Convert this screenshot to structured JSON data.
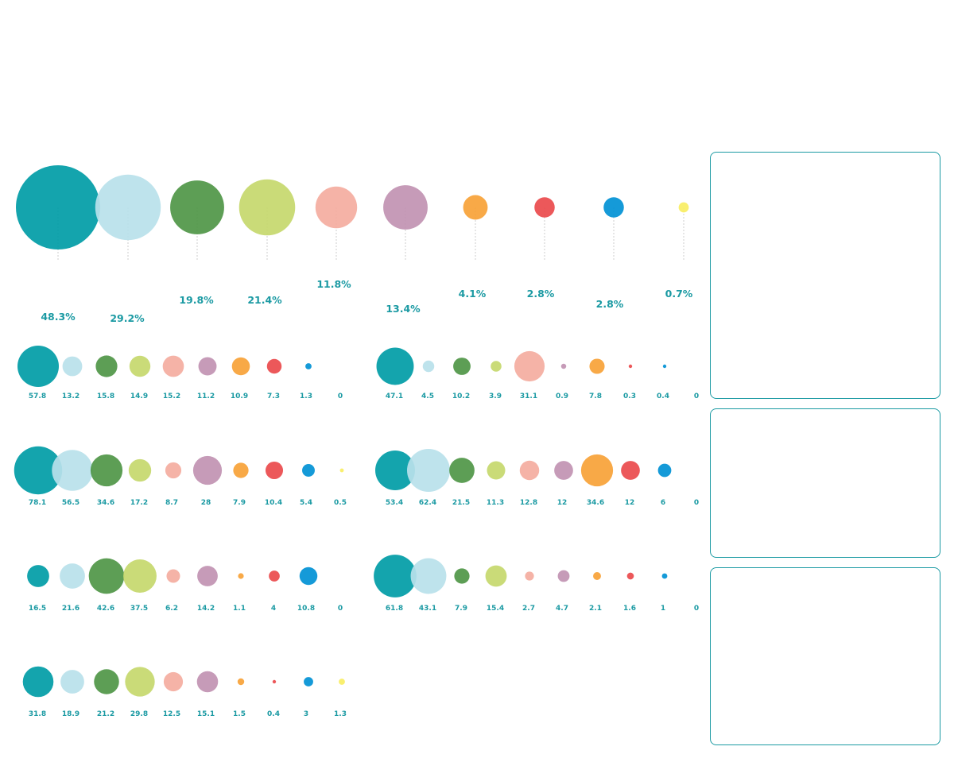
{
  "colors": [
    "#009ca6",
    "#b9e1ea",
    "#4f9647",
    "#c5d86d",
    "#f4ada0",
    "#c193b2",
    "#f7a237",
    "#ea4a4c",
    "#0191d5",
    "#f8ee63"
  ],
  "label_color": "#1b9aa3",
  "chart_data": {
    "type": "bubble",
    "summary": {
      "values": [
        48.3,
        29.2,
        19.8,
        21.4,
        11.8,
        13.4,
        4.1,
        2.8,
        2.8,
        0.7
      ],
      "labels": [
        "48.3%",
        "29.2%",
        "19.8%",
        "21.4%",
        "11.8%",
        "13.4%",
        "4.1%",
        "2.8%",
        "2.8%",
        "0.7%"
      ]
    },
    "rows": [
      {
        "values": [
          57.8,
          13.2,
          15.8,
          14.9,
          15.2,
          11.2,
          10.9,
          7.3,
          1.3,
          0
        ]
      },
      {
        "values": [
          47.1,
          4.5,
          10.2,
          3.9,
          31.1,
          0.9,
          7.8,
          0.3,
          0.4,
          0
        ]
      },
      {
        "values": [
          78.1,
          56.5,
          34.6,
          17.2,
          8.7,
          28,
          7.9,
          10.4,
          5.4,
          0.5
        ]
      },
      {
        "values": [
          53.4,
          62.4,
          21.5,
          11.3,
          12.8,
          12,
          34.6,
          12,
          6,
          0
        ]
      },
      {
        "values": [
          16.5,
          21.6,
          42.6,
          37.5,
          6.2,
          14.2,
          1.1,
          4,
          10.8,
          0
        ]
      },
      {
        "values": [
          61.8,
          43.1,
          7.9,
          15.4,
          2.7,
          4.7,
          2.1,
          1.6,
          1,
          0
        ]
      },
      {
        "values": [
          31.8,
          18.9,
          21.2,
          29.8,
          12.5,
          15.1,
          1.5,
          0.4,
          3,
          1.3
        ]
      }
    ]
  }
}
